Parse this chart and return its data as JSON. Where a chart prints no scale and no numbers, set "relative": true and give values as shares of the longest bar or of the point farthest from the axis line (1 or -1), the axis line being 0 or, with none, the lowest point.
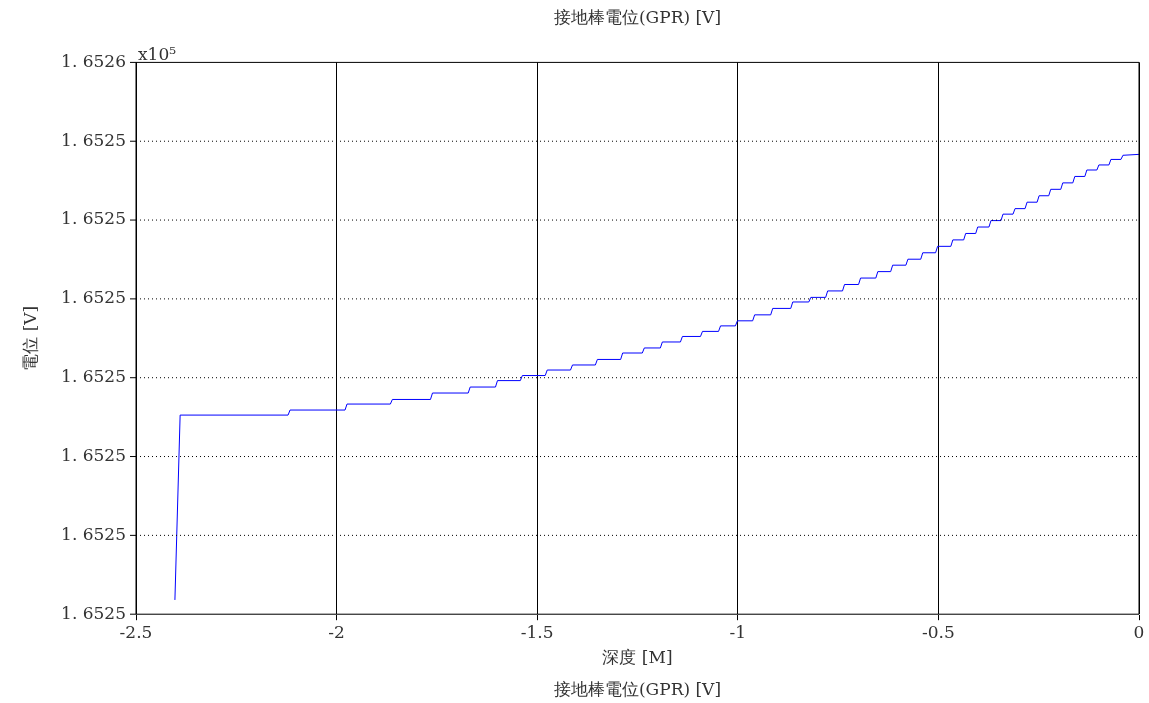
{
  "chart_data": {
    "type": "line",
    "title": "接地棒電位(GPR) [V]",
    "xlabel": "深度 [M]",
    "ylabel": "電位 [V]",
    "annotations": [
      "x10⁵",
      "接地棒電位(GPR) [V]",
      "1. 6525",
      "1. 6525",
      "1. 6525",
      "1. 6525",
      "1. 6525",
      "1. 6525",
      "1. 6525",
      "1. 6526"
    ],
    "relative": true,
    "xlim": [
      -2.5,
      0
    ],
    "xticks": [
      -2.5,
      -2,
      -1.5,
      -1,
      -0.5,
      0
    ],
    "grid": true,
    "legend": false,
    "marker": "none",
    "line_style": "solid",
    "series": [
      {
        "color": "#0000ff",
        "x": [
          -2.403,
          -2.39,
          -2.121,
          -2.116,
          -1.979,
          -1.974,
          -1.866,
          -1.861,
          -1.766,
          -1.761,
          -1.672,
          -1.667,
          -1.604,
          -1.599,
          -1.542,
          -1.537,
          -1.48,
          -1.475,
          -1.417,
          -1.412,
          -1.355,
          -1.35,
          -1.292,
          -1.287,
          -1.238,
          -1.233,
          -1.193,
          -1.188,
          -1.143,
          -1.138,
          -1.093,
          -1.088,
          -1.048,
          -1.043,
          -1.006,
          -1.001,
          -0.963,
          -0.958,
          -0.918,
          -0.913,
          -0.868,
          -0.863,
          -0.823,
          -0.818,
          -0.781,
          -0.776,
          -0.739,
          -0.734,
          -0.699,
          -0.694,
          -0.656,
          -0.651,
          -0.619,
          -0.614,
          -0.581,
          -0.576,
          -0.544,
          -0.539,
          -0.507,
          -0.502,
          -0.469,
          -0.464,
          -0.437,
          -0.432,
          -0.407,
          -0.402,
          -0.374,
          -0.369,
          -0.344,
          -0.339,
          -0.314,
          -0.309,
          -0.284,
          -0.279,
          -0.254,
          -0.249,
          -0.225,
          -0.22,
          -0.195,
          -0.19,
          -0.165,
          -0.16,
          -0.135,
          -0.13,
          -0.105,
          -0.1,
          -0.075,
          -0.07,
          -0.045,
          -0.04,
          0
        ],
        "values": [
          0.031,
          0.433,
          0.433,
          0.444,
          0.444,
          0.457,
          0.457,
          0.467,
          0.467,
          0.481,
          0.481,
          0.494,
          0.494,
          0.508,
          0.508,
          0.519,
          0.519,
          0.531,
          0.531,
          0.542,
          0.542,
          0.554,
          0.554,
          0.568,
          0.568,
          0.579,
          0.579,
          0.592,
          0.592,
          0.604,
          0.604,
          0.615,
          0.615,
          0.627,
          0.627,
          0.638,
          0.638,
          0.651,
          0.651,
          0.665,
          0.665,
          0.679,
          0.679,
          0.689,
          0.689,
          0.703,
          0.703,
          0.717,
          0.717,
          0.731,
          0.731,
          0.745,
          0.745,
          0.759,
          0.759,
          0.772,
          0.772,
          0.786,
          0.786,
          0.8,
          0.8,
          0.814,
          0.814,
          0.828,
          0.828,
          0.842,
          0.842,
          0.856,
          0.856,
          0.87,
          0.87,
          0.882,
          0.882,
          0.896,
          0.896,
          0.91,
          0.91,
          0.924,
          0.924,
          0.938,
          0.938,
          0.952,
          0.952,
          0.966,
          0.966,
          0.977,
          0.977,
          0.989,
          0.989,
          0.998,
          1
        ]
      }
    ]
  }
}
